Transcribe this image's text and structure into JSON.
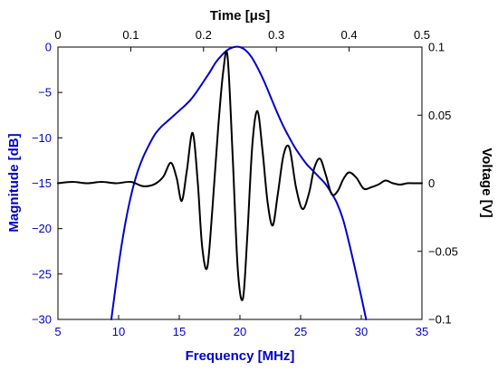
{
  "chart_data": {
    "type": "line",
    "top_axis": {
      "label": "Time [μs]",
      "range": [
        0,
        0.5
      ],
      "ticks": [
        "0",
        "0.1",
        "0.2",
        "0.3",
        "0.4",
        "0.5"
      ],
      "color": "#000000"
    },
    "bottom_axis": {
      "label": "Frequency [MHz]",
      "range": [
        5,
        35
      ],
      "ticks": [
        "5",
        "10",
        "15",
        "20",
        "25",
        "30",
        "35"
      ],
      "color": "#0000cc"
    },
    "left_axis": {
      "label": "Magnitude [dB]",
      "range": [
        -30,
        0
      ],
      "ticks": [
        "0",
        "−5",
        "−10",
        "−15",
        "−20",
        "−25",
        "−30"
      ],
      "color": "#0000cc"
    },
    "right_axis": {
      "label": "Voltage [V]",
      "range": [
        -0.1,
        0.1
      ],
      "ticks": [
        "0.1",
        "0.05",
        "0",
        "−0.05",
        "−0.1"
      ],
      "color": "#000000"
    },
    "series": [
      {
        "axes": "bottom-left",
        "color": "#0000cc",
        "x": [
          9.4,
          10,
          10.5,
          11,
          11.5,
          12,
          12.5,
          13,
          13.5,
          14,
          14.5,
          15,
          15.5,
          16,
          16.5,
          17,
          17.5,
          18,
          18.5,
          19,
          19.5,
          20,
          20.5,
          21,
          21.5,
          22,
          22.5,
          23,
          23.5,
          24,
          24.5,
          25,
          25.5,
          26,
          26.5,
          27,
          27.5,
          28,
          28.5,
          29,
          29.5,
          30,
          30.4
        ],
        "y": [
          -30,
          -24,
          -19.8,
          -16.5,
          -14,
          -12.2,
          -10.8,
          -9.6,
          -8.8,
          -8.2,
          -7.6,
          -7,
          -6.4,
          -5.7,
          -4.8,
          -3.8,
          -2.8,
          -1.7,
          -0.9,
          -0.3,
          0,
          0,
          -0.4,
          -1.2,
          -2.4,
          -3.8,
          -5.4,
          -7,
          -8.5,
          -9.8,
          -11,
          -12,
          -12.9,
          -13.6,
          -14.3,
          -15,
          -16,
          -17.2,
          -19,
          -21.6,
          -24.5,
          -27.5,
          -30
        ]
      },
      {
        "axes": "top-right",
        "color": "#000000",
        "x": [
          0,
          0.02,
          0.04,
          0.06,
          0.08,
          0.1,
          0.115,
          0.125,
          0.135,
          0.145,
          0.155,
          0.163,
          0.17,
          0.177,
          0.185,
          0.192,
          0.198,
          0.205,
          0.212,
          0.22,
          0.227,
          0.233,
          0.24,
          0.247,
          0.254,
          0.26,
          0.267,
          0.274,
          0.281,
          0.288,
          0.295,
          0.302,
          0.31,
          0.318,
          0.327,
          0.336,
          0.345,
          0.352,
          0.36,
          0.368,
          0.376,
          0.384,
          0.392,
          0.4,
          0.41,
          0.42,
          0.43,
          0.44,
          0.45,
          0.46,
          0.47,
          0.48,
          0.49,
          0.5
        ],
        "y": [
          0,
          0.001,
          0,
          0.001,
          0,
          0.001,
          -0.002,
          -0.002,
          0,
          0.005,
          0.015,
          0.004,
          -0.013,
          0.009,
          0.037,
          0.001,
          -0.046,
          -0.062,
          -0.02,
          0.04,
          0.082,
          0.093,
          0.02,
          -0.063,
          -0.085,
          -0.04,
          0.028,
          0.053,
          0.024,
          -0.014,
          -0.031,
          -0.008,
          0.021,
          0.026,
          -0.003,
          -0.019,
          -0.007,
          0.011,
          0.018,
          0.006,
          -0.008,
          -0.006,
          0.003,
          0.008,
          0.004,
          -0.004,
          -0.003,
          -0.001,
          0.002,
          0,
          -0.001,
          0,
          0,
          0
        ]
      }
    ],
    "grid": false,
    "legend": "none"
  }
}
